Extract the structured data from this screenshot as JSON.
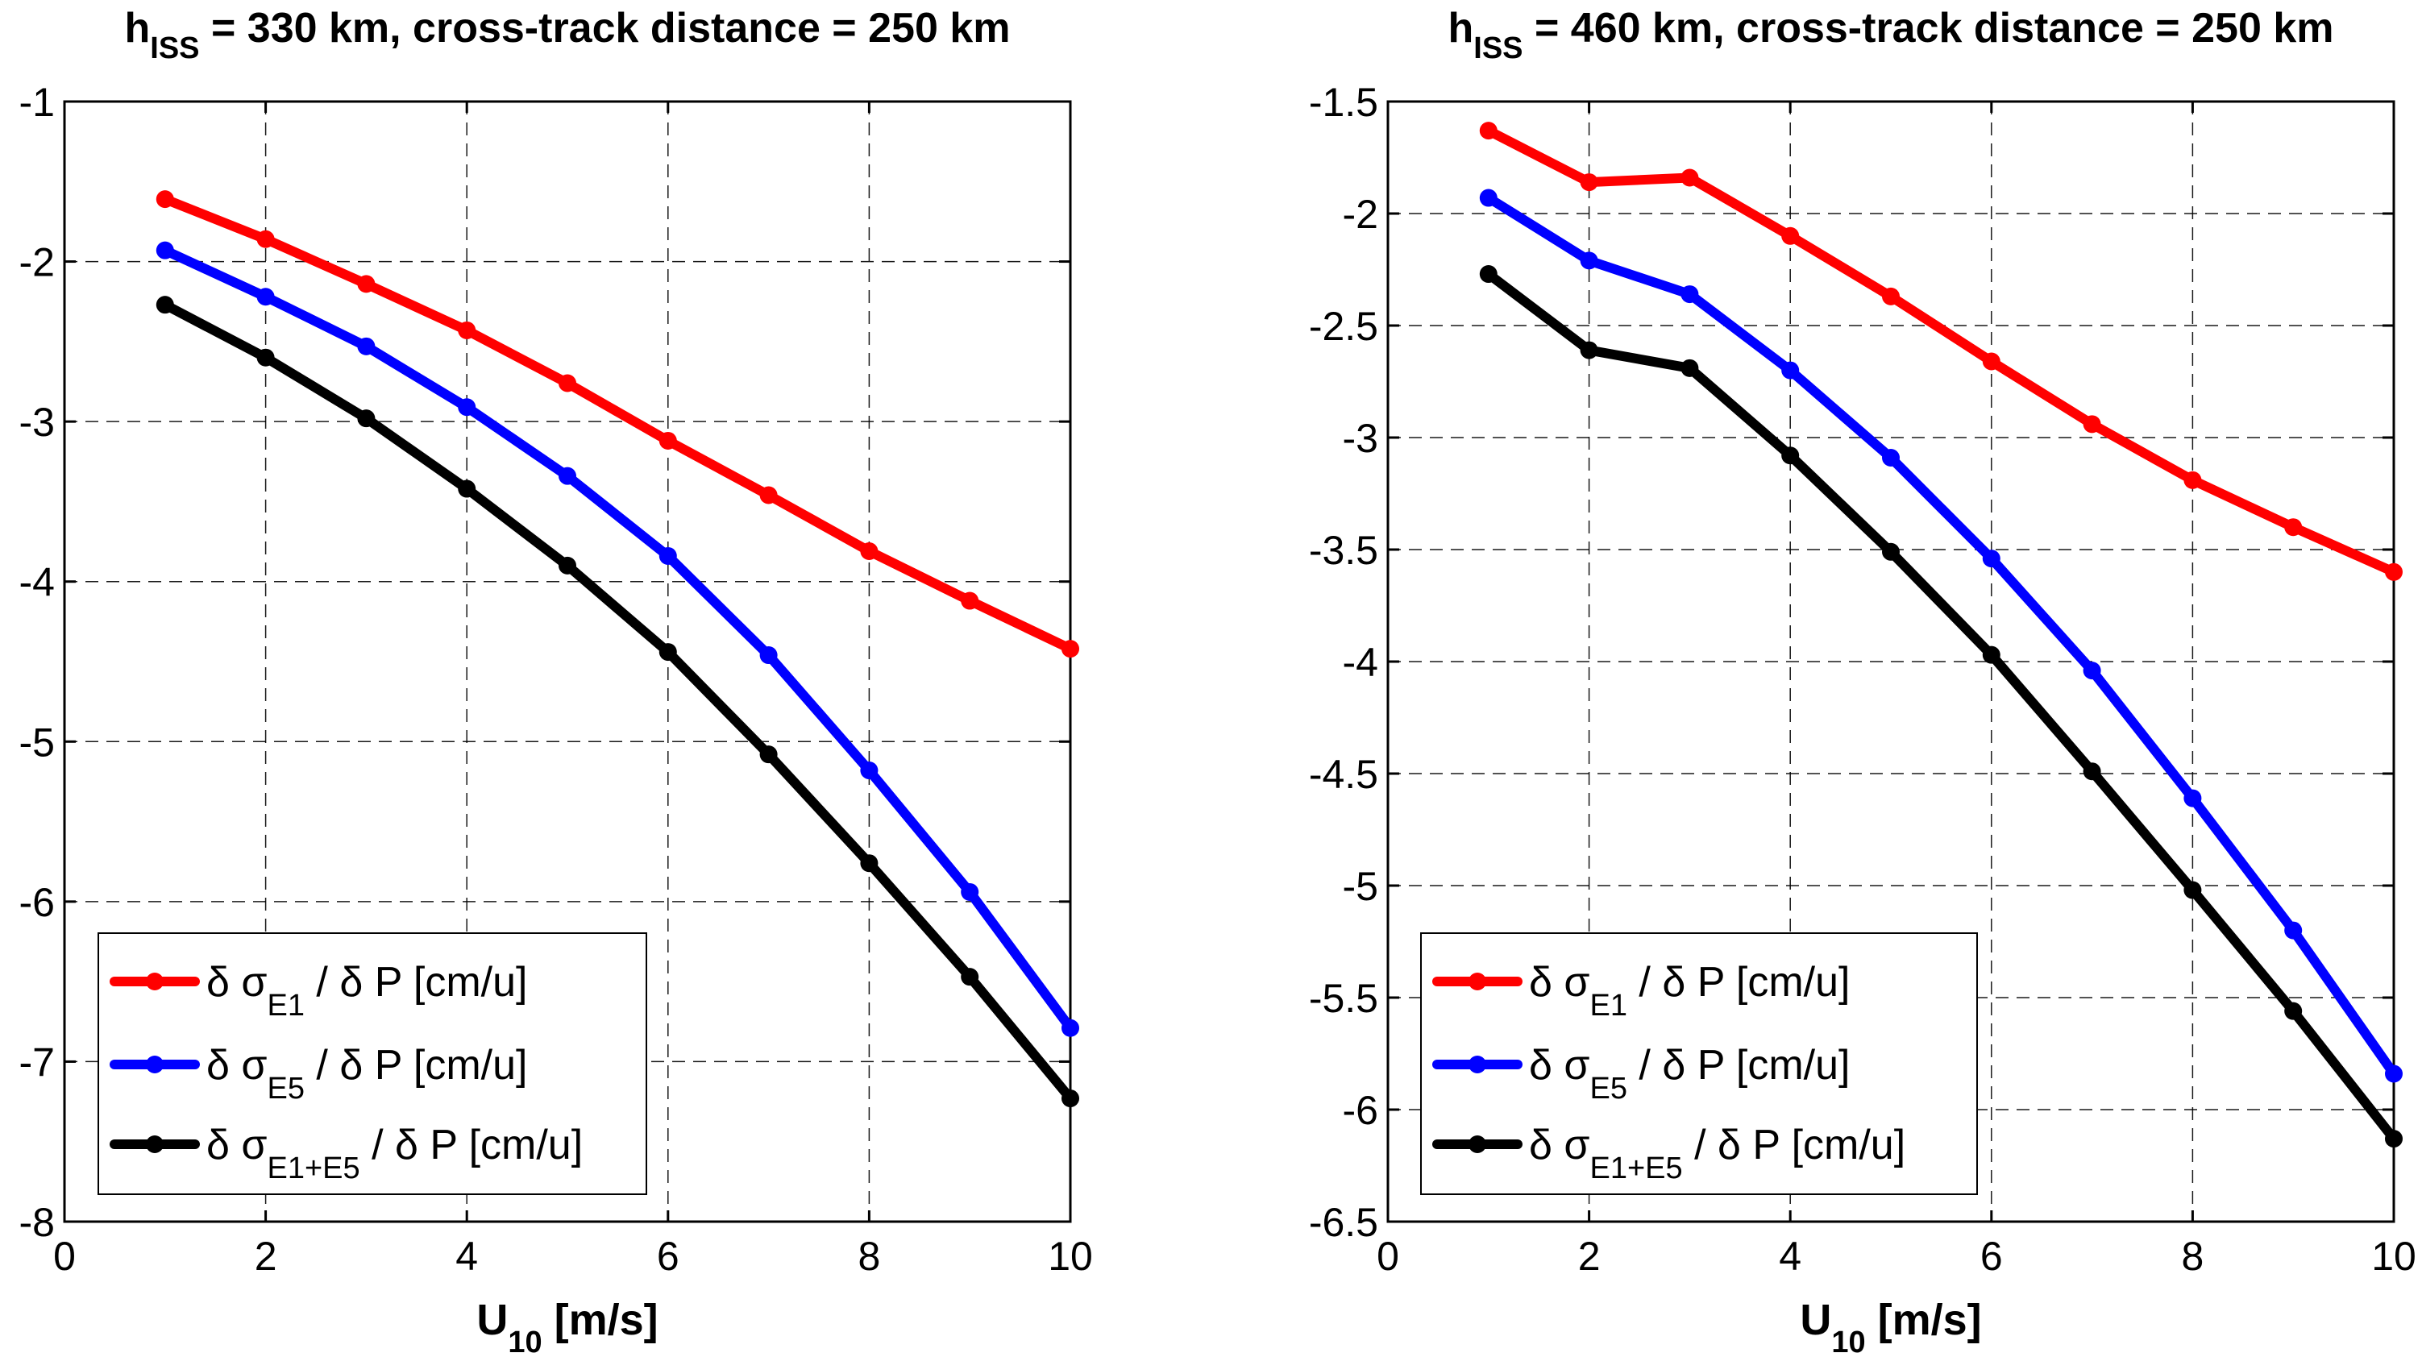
{
  "chart_data": [
    {
      "type": "line",
      "title": {
        "prefix": "h",
        "sub": "ISS",
        "rest": " = 330 km, cross-track distance = 250 km"
      },
      "xlabel": {
        "main": "U",
        "sub": "10",
        "rest": " [m/s]"
      },
      "ylabel": "",
      "xlim": [
        0,
        10
      ],
      "ylim": [
        -8,
        -1
      ],
      "xticks": [
        0,
        2,
        4,
        6,
        8,
        10
      ],
      "yticks": [
        -8,
        -7,
        -6,
        -5,
        -4,
        -3,
        -2,
        -1
      ],
      "grid": true,
      "legend_position": "bottom-left",
      "x": [
        1,
        2,
        3,
        4,
        5,
        6,
        7,
        8,
        9,
        10
      ],
      "series": [
        {
          "name": "E1",
          "color": "#ff0000",
          "legend": {
            "pre": "δ σ",
            "sub": "E1",
            "post": " / δ P [cm/u]"
          },
          "values": [
            -1.61,
            -1.86,
            -2.14,
            -2.43,
            -2.76,
            -3.12,
            -3.46,
            -3.81,
            -4.12,
            -4.42
          ]
        },
        {
          "name": "E5",
          "color": "#0000ff",
          "legend": {
            "pre": "δ σ",
            "sub": "E5",
            "post": " / δ P [cm/u]"
          },
          "values": [
            -1.93,
            -2.22,
            -2.53,
            -2.91,
            -3.34,
            -3.84,
            -4.46,
            -5.18,
            -5.94,
            -6.79
          ]
        },
        {
          "name": "E1+E5",
          "color": "#000000",
          "legend": {
            "pre": "δ σ",
            "sub": "E1+E5",
            "post": " / δ P [cm/u]"
          },
          "values": [
            -2.27,
            -2.6,
            -2.98,
            -3.42,
            -3.9,
            -4.44,
            -5.08,
            -5.76,
            -6.47,
            -7.23
          ]
        }
      ]
    },
    {
      "type": "line",
      "title": {
        "prefix": "h",
        "sub": "ISS",
        "rest": " = 460 km, cross-track distance = 250 km"
      },
      "xlabel": {
        "main": "U",
        "sub": "10",
        "rest": " [m/s]"
      },
      "ylabel": "",
      "xlim": [
        0,
        10
      ],
      "ylim": [
        -6.5,
        -1.5
      ],
      "xticks": [
        0,
        2,
        4,
        6,
        8,
        10
      ],
      "yticks": [
        -6.5,
        -6,
        -5.5,
        -5,
        -4.5,
        -4,
        -3.5,
        -3,
        -2.5,
        -2,
        -1.5
      ],
      "grid": true,
      "legend_position": "bottom-left",
      "x": [
        1,
        2,
        3,
        4,
        5,
        6,
        7,
        8,
        9,
        10
      ],
      "series": [
        {
          "name": "E1",
          "color": "#ff0000",
          "legend": {
            "pre": "δ σ",
            "sub": "E1",
            "post": " / δ P [cm/u]"
          },
          "values": [
            -1.63,
            -1.86,
            -1.84,
            -2.1,
            -2.37,
            -2.66,
            -2.94,
            -3.19,
            -3.4,
            -3.6
          ]
        },
        {
          "name": "E5",
          "color": "#0000ff",
          "legend": {
            "pre": "δ σ",
            "sub": "E5",
            "post": " / δ P [cm/u]"
          },
          "values": [
            -1.93,
            -2.21,
            -2.36,
            -2.7,
            -3.09,
            -3.54,
            -4.04,
            -4.61,
            -5.2,
            -5.84
          ]
        },
        {
          "name": "E1+E5",
          "color": "#000000",
          "legend": {
            "pre": "δ σ",
            "sub": "E1+E5",
            "post": " / δ P [cm/u]"
          },
          "values": [
            -2.27,
            -2.61,
            -2.69,
            -3.08,
            -3.51,
            -3.97,
            -4.49,
            -5.02,
            -5.56,
            -6.13
          ]
        }
      ]
    }
  ]
}
